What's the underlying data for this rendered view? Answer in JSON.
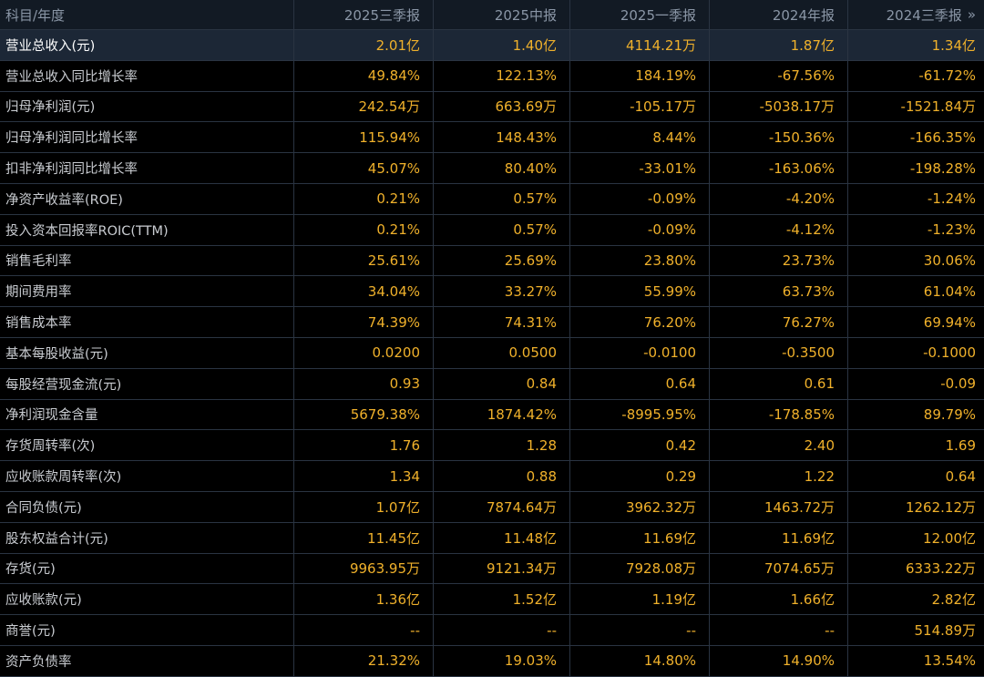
{
  "header": {
    "first": "科目/年度",
    "periods": [
      "2025三季报",
      "2025中报",
      "2025一季报",
      "2024年报",
      "2024三季报"
    ],
    "more_icon": "»"
  },
  "rows": [
    {
      "label": "营业总收入(元)",
      "values": [
        "2.01亿",
        "1.40亿",
        "4114.21万",
        "1.87亿",
        "1.34亿"
      ]
    },
    {
      "label": "营业总收入同比增长率",
      "values": [
        "49.84%",
        "122.13%",
        "184.19%",
        "-67.56%",
        "-61.72%"
      ]
    },
    {
      "label": "归母净利润(元)",
      "values": [
        "242.54万",
        "663.69万",
        "-105.17万",
        "-5038.17万",
        "-1521.84万"
      ]
    },
    {
      "label": "归母净利润同比增长率",
      "values": [
        "115.94%",
        "148.43%",
        "8.44%",
        "-150.36%",
        "-166.35%"
      ]
    },
    {
      "label": "扣非净利润同比增长率",
      "values": [
        "45.07%",
        "80.40%",
        "-33.01%",
        "-163.06%",
        "-198.28%"
      ]
    },
    {
      "label": "净资产收益率(ROE)",
      "values": [
        "0.21%",
        "0.57%",
        "-0.09%",
        "-4.20%",
        "-1.24%"
      ]
    },
    {
      "label": "投入资本回报率ROIC(TTM)",
      "values": [
        "0.21%",
        "0.57%",
        "-0.09%",
        "-4.12%",
        "-1.23%"
      ]
    },
    {
      "label": "销售毛利率",
      "values": [
        "25.61%",
        "25.69%",
        "23.80%",
        "23.73%",
        "30.06%"
      ]
    },
    {
      "label": "期间费用率",
      "values": [
        "34.04%",
        "33.27%",
        "55.99%",
        "63.73%",
        "61.04%"
      ]
    },
    {
      "label": "销售成本率",
      "values": [
        "74.39%",
        "74.31%",
        "76.20%",
        "76.27%",
        "69.94%"
      ]
    },
    {
      "label": "基本每股收益(元)",
      "values": [
        "0.0200",
        "0.0500",
        "-0.0100",
        "-0.3500",
        "-0.1000"
      ]
    },
    {
      "label": "每股经营现金流(元)",
      "values": [
        "0.93",
        "0.84",
        "0.64",
        "0.61",
        "-0.09"
      ]
    },
    {
      "label": "净利润现金含量",
      "values": [
        "5679.38%",
        "1874.42%",
        "-8995.95%",
        "-178.85%",
        "89.79%"
      ]
    },
    {
      "label": "存货周转率(次)",
      "values": [
        "1.76",
        "1.28",
        "0.42",
        "2.40",
        "1.69"
      ]
    },
    {
      "label": "应收账款周转率(次)",
      "values": [
        "1.34",
        "0.88",
        "0.29",
        "1.22",
        "0.64"
      ]
    },
    {
      "label": "合同负债(元)",
      "values": [
        "1.07亿",
        "7874.64万",
        "3962.32万",
        "1463.72万",
        "1262.12万"
      ]
    },
    {
      "label": "股东权益合计(元)",
      "values": [
        "11.45亿",
        "11.48亿",
        "11.69亿",
        "11.69亿",
        "12.00亿"
      ]
    },
    {
      "label": "存货(元)",
      "values": [
        "9963.95万",
        "9121.34万",
        "7928.08万",
        "7074.65万",
        "6333.22万"
      ]
    },
    {
      "label": "应收账款(元)",
      "values": [
        "1.36亿",
        "1.52亿",
        "1.19亿",
        "1.66亿",
        "2.82亿"
      ]
    },
    {
      "label": "商誉(元)",
      "values": [
        "--",
        "--",
        "--",
        "--",
        "514.89万"
      ]
    },
    {
      "label": "资产负债率",
      "values": [
        "21.32%",
        "19.03%",
        "14.80%",
        "14.90%",
        "13.54%"
      ]
    }
  ],
  "selected_row": 0,
  "colors": {
    "value_text": "#f0b12b",
    "label_text": "#c9ccd1",
    "header_text": "#8a96a6",
    "background": "#000000",
    "selected_row_bg": "#1c2736",
    "grid": "#2a3442"
  }
}
